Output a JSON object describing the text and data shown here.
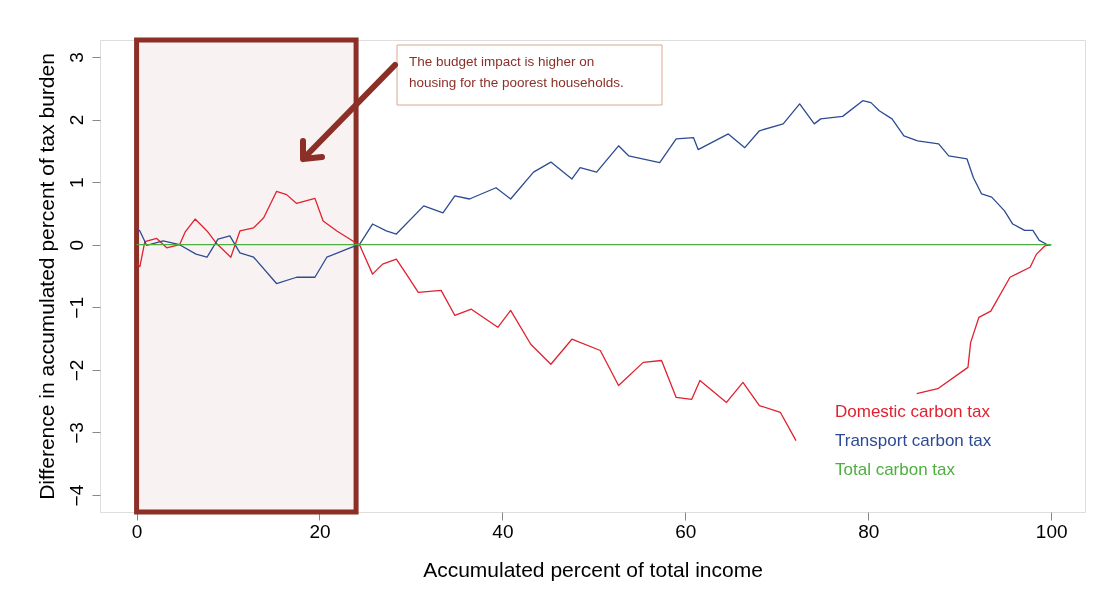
{
  "chart_data": {
    "type": "line",
    "xlabel": "Accumulated percent of total income",
    "ylabel": "Difference in accumulated percent of tax burden",
    "xlim": [
      -4,
      103.7
    ],
    "ylim": [
      -4.27,
      3.27
    ],
    "xticks": [
      0,
      20,
      40,
      60,
      80,
      100
    ],
    "yticks": [
      -4,
      -3,
      -2,
      -1,
      0,
      1,
      2,
      3
    ],
    "grid": false,
    "legend": "bottom right",
    "annotations": [
      "The budget impact is higher on housing for the poorest households."
    ],
    "bands": [
      {
        "axis": "x",
        "from": 0,
        "to": 24,
        "color": "#8b2f27"
      }
    ],
    "series": [
      {
        "name": "Domestic carbon tax",
        "color": "#e0212f",
        "x": [
          0,
          0.36,
          0.9,
          2.2,
          3.3,
          4.7,
          5.3,
          6.4,
          7.7,
          8.8,
          10.3,
          11.3,
          12.8,
          13.9,
          15.3,
          16.4,
          17.5,
          19.5,
          20.4,
          21.9,
          23.3,
          24.4,
          25.8,
          26.9,
          28.4,
          29.5,
          30.8,
          33.3,
          34.8,
          36.6,
          39.5,
          40.9,
          43.1,
          45.3,
          47.6,
          50.7,
          52.7,
          55.4,
          57.4,
          59.0,
          60.7,
          61.6,
          64.5,
          66.3,
          68.1,
          70.4,
          72.1,
          72.5,
          85.0,
          85.3,
          87.6,
          90.9,
          91.2,
          92.1,
          93.4,
          95.5,
          97.7,
          98.4,
          99.3,
          100
        ],
        "values": [
          -0.3,
          -0.35,
          0.05,
          0.1,
          -0.05,
          0.0,
          0.2,
          0.41,
          0.22,
          0.01,
          -0.2,
          0.22,
          0.27,
          0.43,
          0.85,
          0.8,
          0.66,
          0.74,
          0.38,
          0.22,
          0.09,
          -0.01,
          -0.47,
          -0.31,
          -0.23,
          -0.47,
          -0.76,
          -0.73,
          -1.13,
          -1.03,
          -1.32,
          -1.05,
          -1.59,
          -1.91,
          -1.51,
          -1.69,
          -2.25,
          -1.88,
          -1.85,
          -2.44,
          -2.47,
          -2.17,
          -2.52,
          -2.2,
          -2.57,
          -2.68,
          -3.13,
          null,
          null,
          -2.38,
          -2.3,
          -1.96,
          -1.56,
          -1.16,
          -1.06,
          -0.52,
          -0.36,
          -0.15,
          -0.02,
          0
        ]
      },
      {
        "name": "Transport carbon tax",
        "color": "#2d4b94",
        "x": [
          0,
          0.36,
          1.1,
          2.9,
          4.7,
          6.5,
          7.7,
          8.9,
          10.2,
          11.3,
          12.8,
          15.3,
          17.5,
          19.5,
          20.8,
          23.0,
          24.4,
          25.8,
          27.3,
          28.4,
          31.4,
          33.5,
          34.8,
          36.4,
          39.3,
          40.9,
          43.4,
          45.3,
          47.6,
          48.5,
          50.3,
          52.7,
          53.8,
          57.2,
          59.0,
          60.9,
          61.4,
          64.7,
          66.5,
          68.1,
          70.7,
          72.5,
          74.1,
          74.8,
          77.2,
          79.4,
          80.3,
          81.2,
          82.6,
          83.9,
          85.4,
          87.7,
          88.8,
          90.8,
          91.5,
          92.4,
          93.5,
          94.9,
          95.8,
          97.1,
          98.0,
          98.7,
          99.6,
          100
        ],
        "values": [
          0.25,
          0.22,
          -0.01,
          0.06,
          0.0,
          -0.15,
          -0.2,
          0.09,
          0.14,
          -0.13,
          -0.2,
          -0.62,
          -0.52,
          -0.52,
          -0.2,
          -0.07,
          0.01,
          0.33,
          0.22,
          0.17,
          0.62,
          0.51,
          0.78,
          0.73,
          0.91,
          0.73,
          1.16,
          1.32,
          1.05,
          1.23,
          1.16,
          1.58,
          1.42,
          1.31,
          1.69,
          1.71,
          1.52,
          1.77,
          1.55,
          1.82,
          1.93,
          2.25,
          1.93,
          2.01,
          2.05,
          2.3,
          2.27,
          2.14,
          2.01,
          1.74,
          1.66,
          1.61,
          1.42,
          1.37,
          1.07,
          0.81,
          0.76,
          0.54,
          0.33,
          0.23,
          0.23,
          0.07,
          0.0,
          0
        ]
      },
      {
        "name": "Total carbon tax",
        "color": "#4caf3e",
        "x": [
          0,
          100
        ],
        "values": [
          0,
          0
        ]
      }
    ]
  }
}
